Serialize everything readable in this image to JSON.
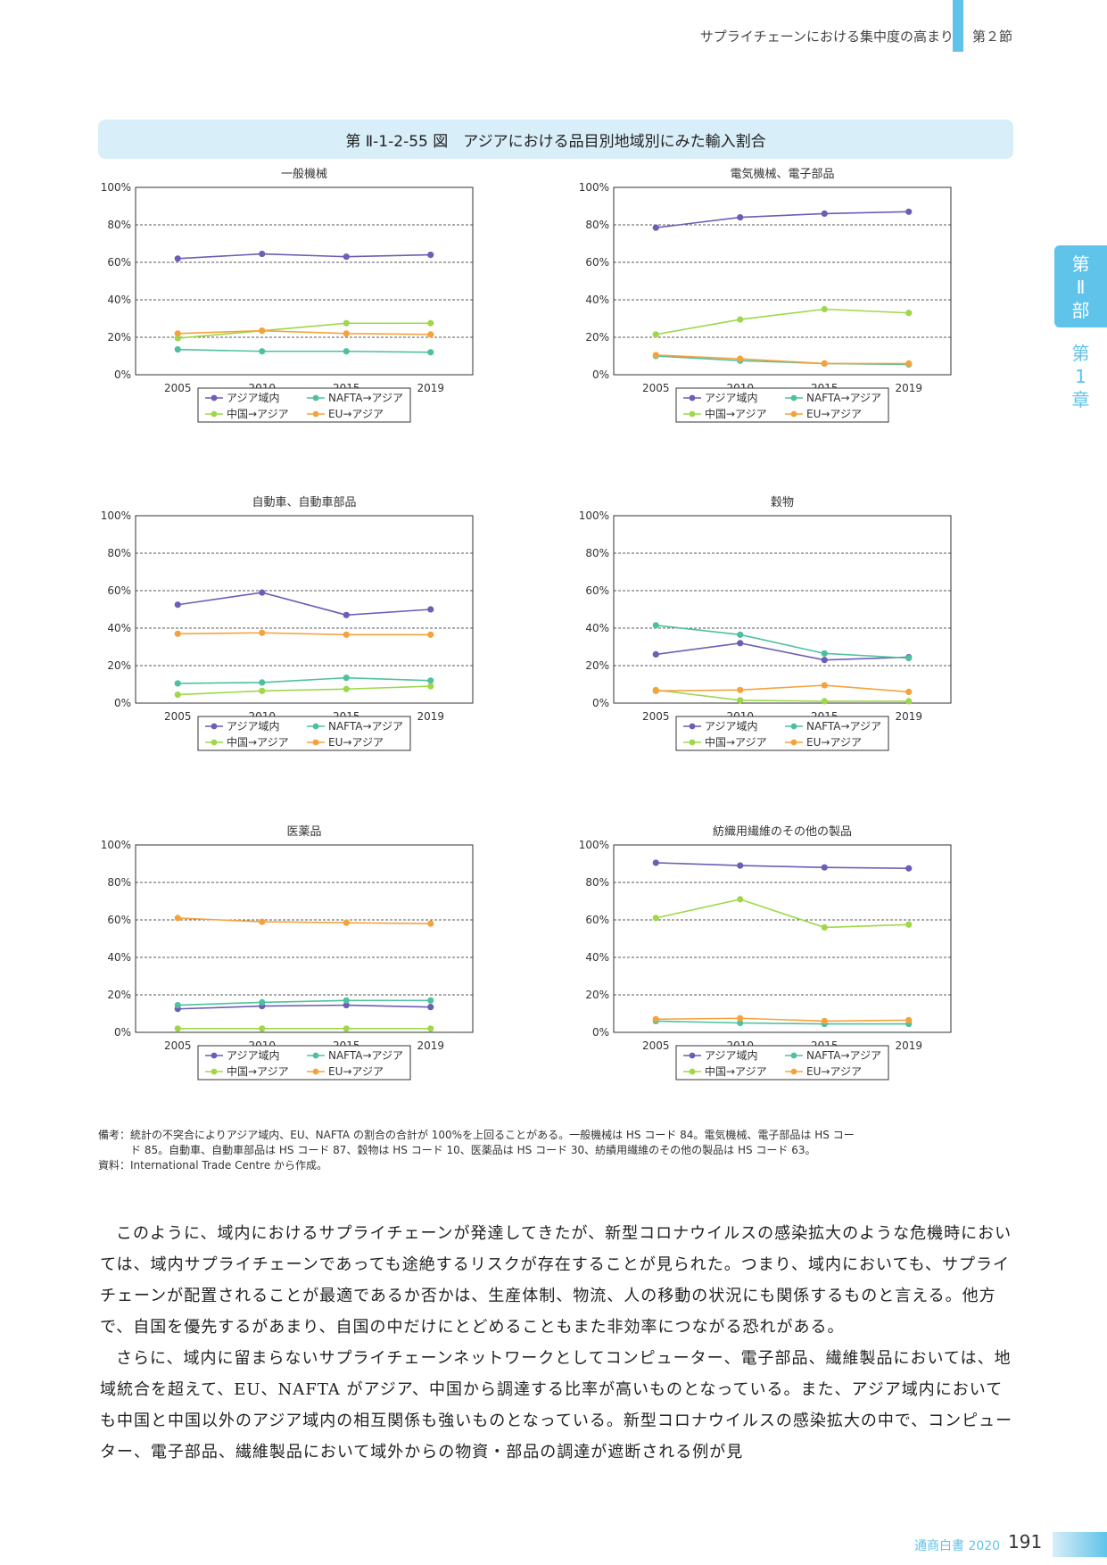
{
  "header": {
    "title": "サプライチェーンにおける集中度の高まり",
    "section": "第２節"
  },
  "side_tab": {
    "part_a": "第",
    "part_b": "Ⅱ",
    "part_c": "部",
    "chap_a": "第",
    "chap_b": "1",
    "chap_c": "章"
  },
  "figure_title": "第 Ⅱ-1-2-55 図　アジアにおける品目別地域別にみた輸入割合",
  "legend_labels": [
    "アジア域内",
    "NAFTA→アジア",
    "中国→アジア",
    "EU→アジア"
  ],
  "colors": {
    "asia": "#6a5fb5",
    "nafta": "#4ec0a0",
    "china": "#9ed84a",
    "eu": "#f5a23c",
    "accent": "#5fc3ea"
  },
  "chart_data": [
    {
      "type": "line",
      "title": "一般機械",
      "x": [
        "2005",
        "2010",
        "2015",
        "2019"
      ],
      "ylim": [
        0,
        100
      ],
      "y_ticks": [
        "0%",
        "20%",
        "40%",
        "60%",
        "80%",
        "100%"
      ],
      "grid": true,
      "legend_position": "bottom",
      "series": [
        {
          "name": "アジア域内",
          "values": [
            62,
            64.5,
            63,
            64
          ]
        },
        {
          "name": "NAFTA→アジア",
          "values": [
            13.5,
            12.5,
            12.5,
            12
          ]
        },
        {
          "name": "中国→アジア",
          "values": [
            19.5,
            23.5,
            27.5,
            27.5
          ]
        },
        {
          "name": "EU→アジア",
          "values": [
            22,
            23.5,
            22,
            21.5
          ]
        }
      ]
    },
    {
      "type": "line",
      "title": "電気機械、電子部品",
      "x": [
        "2005",
        "2010",
        "2015",
        "2019"
      ],
      "ylim": [
        0,
        100
      ],
      "y_ticks": [
        "0%",
        "20%",
        "40%",
        "60%",
        "80%",
        "100%"
      ],
      "grid": true,
      "legend_position": "bottom",
      "series": [
        {
          "name": "アジア域内",
          "values": [
            78.5,
            84,
            86,
            87
          ]
        },
        {
          "name": "NAFTA→アジア",
          "values": [
            10,
            7.5,
            6,
            5.5
          ]
        },
        {
          "name": "中国→アジア",
          "values": [
            21.5,
            29.5,
            35,
            33
          ]
        },
        {
          "name": "EU→アジア",
          "values": [
            10.5,
            8.5,
            6,
            6
          ]
        }
      ]
    },
    {
      "type": "line",
      "title": "自動車、自動車部品",
      "x": [
        "2005",
        "2010",
        "2015",
        "2019"
      ],
      "ylim": [
        0,
        100
      ],
      "y_ticks": [
        "0%",
        "20%",
        "40%",
        "60%",
        "80%",
        "100%"
      ],
      "grid": true,
      "legend_position": "bottom",
      "series": [
        {
          "name": "アジア域内",
          "values": [
            52.5,
            59,
            47,
            50
          ]
        },
        {
          "name": "NAFTA→アジア",
          "values": [
            10.5,
            11,
            13.5,
            12
          ]
        },
        {
          "name": "中国→アジア",
          "values": [
            4.5,
            6.5,
            7.5,
            9
          ]
        },
        {
          "name": "EU→アジア",
          "values": [
            37,
            37.5,
            36.5,
            36.5
          ]
        }
      ]
    },
    {
      "type": "line",
      "title": "穀物",
      "x": [
        "2005",
        "2010",
        "2015",
        "2019"
      ],
      "ylim": [
        0,
        100
      ],
      "y_ticks": [
        "0%",
        "20%",
        "40%",
        "60%",
        "80%",
        "100%"
      ],
      "grid": true,
      "legend_position": "bottom",
      "series": [
        {
          "name": "アジア域内",
          "values": [
            26,
            32,
            23,
            24.5
          ]
        },
        {
          "name": "NAFTA→アジア",
          "values": [
            41.5,
            36.5,
            26.5,
            24
          ]
        },
        {
          "name": "中国→アジア",
          "values": [
            7,
            1.5,
            1,
            1
          ]
        },
        {
          "name": "EU→アジア",
          "values": [
            6.5,
            7,
            9.5,
            6
          ]
        }
      ]
    },
    {
      "type": "line",
      "title": "医薬品",
      "x": [
        "2005",
        "2010",
        "2015",
        "2019"
      ],
      "ylim": [
        0,
        100
      ],
      "y_ticks": [
        "0%",
        "20%",
        "40%",
        "60%",
        "80%",
        "100%"
      ],
      "grid": true,
      "legend_position": "bottom",
      "series": [
        {
          "name": "アジア域内",
          "values": [
            12.5,
            14,
            14.5,
            13.5
          ]
        },
        {
          "name": "NAFTA→アジア",
          "values": [
            14.5,
            16,
            17,
            17
          ]
        },
        {
          "name": "中国→アジア",
          "values": [
            2,
            2,
            2,
            2
          ]
        },
        {
          "name": "EU→アジア",
          "values": [
            61,
            59,
            58.5,
            58
          ]
        }
      ]
    },
    {
      "type": "line",
      "title": "紡織用繊維のその他の製品",
      "x": [
        "2005",
        "2010",
        "2015",
        "2019"
      ],
      "ylim": [
        0,
        100
      ],
      "y_ticks": [
        "0%",
        "20%",
        "40%",
        "60%",
        "80%",
        "100%"
      ],
      "grid": true,
      "legend_position": "bottom",
      "series": [
        {
          "name": "アジア域内",
          "values": [
            90.5,
            89,
            88,
            87.5
          ]
        },
        {
          "name": "NAFTA→アジア",
          "values": [
            6,
            5,
            4.5,
            4.5
          ]
        },
        {
          "name": "中国→アジア",
          "values": [
            61,
            71,
            56,
            57.5
          ]
        },
        {
          "name": "EU→アジア",
          "values": [
            7,
            7.5,
            6,
            6.5
          ]
        }
      ]
    }
  ],
  "notes": {
    "line1": "備考：統計の不突合によりアジア域内、EU、NAFTA の割合の合計が 100%を上回ることがある。一般機械は HS コード 84。電気機械、電子部品は HS コー",
    "line2": "　　　ド 85。自動車、自動車部品は HS コード 87、穀物は HS コード 10、医薬品は HS コード 30、紡績用繊維のその他の製品は HS コード 63。",
    "line3": "資料：International Trade Centre から作成。"
  },
  "body": {
    "p1": "このように、域内におけるサプライチェーンが発達してきたが、新型コロナウイルスの感染拡大のような危機時においては、域内サプライチェーンであっても途絶するリスクが存在することが見られた。つまり、域内においても、サプライチェーンが配置されることが最適であるか否かは、生産体制、物流、人の移動の状況にも関係するものと言える。他方で、自国を優先するがあまり、自国の中だけにとどめることもまた非効率につながる恐れがある。",
    "p2": "さらに、域内に留まらないサプライチェーンネットワークとしてコンピューター、電子部品、繊維製品においては、地域統合を超えて、EU、NAFTA がアジア、中国から調達する比率が高いものとなっている。また、アジア域内においても中国と中国以外のアジア域内の相互関係も強いものとなっている。新型コロナウイルスの感染拡大の中で、コンピューター、電子部品、繊維製品において域外からの物資・部品の調達が遮断される例が見"
  },
  "footer": {
    "publication": "通商白書 2020",
    "page": "191"
  }
}
